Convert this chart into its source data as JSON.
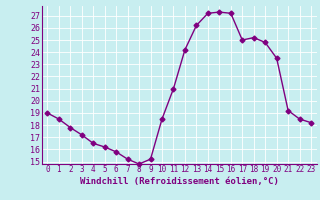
{
  "x": [
    0,
    1,
    2,
    3,
    4,
    5,
    6,
    7,
    8,
    9,
    10,
    11,
    12,
    13,
    14,
    15,
    16,
    17,
    18,
    19,
    20,
    21,
    22,
    23
  ],
  "y": [
    19,
    18.5,
    17.8,
    17.2,
    16.5,
    16.2,
    15.8,
    15.2,
    14.8,
    15.2,
    18.5,
    21,
    24.2,
    26.2,
    27.2,
    27.3,
    27.2,
    25,
    25.2,
    24.8,
    23.5,
    19.2,
    18.5,
    18.2
  ],
  "line_color": "#800080",
  "marker": "D",
  "markersize": 2.5,
  "linewidth": 1,
  "xlabel": "Windchill (Refroidissement éolien,°C)",
  "xlim": [
    -0.5,
    23.5
  ],
  "ylim": [
    14.8,
    27.8
  ],
  "yticks": [
    15,
    16,
    17,
    18,
    19,
    20,
    21,
    22,
    23,
    24,
    25,
    26,
    27
  ],
  "xticks": [
    0,
    1,
    2,
    3,
    4,
    5,
    6,
    7,
    8,
    9,
    10,
    11,
    12,
    13,
    14,
    15,
    16,
    17,
    18,
    19,
    20,
    21,
    22,
    23
  ],
  "background_color": "#c8eef0",
  "grid_color": "#b8d8da",
  "label_color": "#800080",
  "xlabel_fontsize": 6.5,
  "ytick_fontsize": 6,
  "xtick_fontsize": 5.5
}
